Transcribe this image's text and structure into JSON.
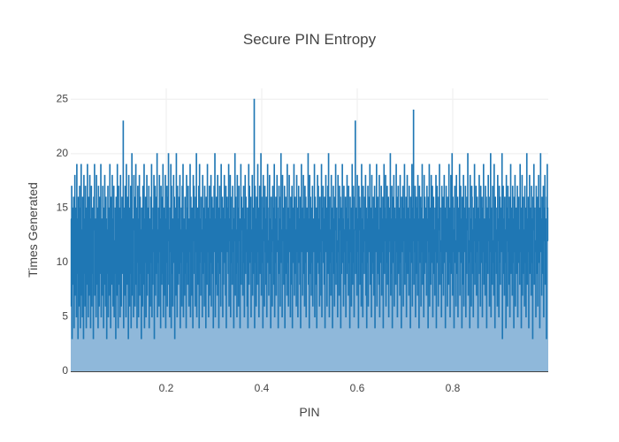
{
  "chart_data": {
    "type": "area",
    "title": "Secure PIN Entropy",
    "xlabel": "PIN",
    "ylabel": "Times Generated",
    "xlim": [
      0,
      1
    ],
    "ylim": [
      0,
      26
    ],
    "x_ticks": [
      0.2,
      0.4,
      0.6,
      0.8
    ],
    "x_tick_labels": [
      "0.2",
      "0.4",
      "0.6",
      "0.8"
    ],
    "y_ticks": [
      0,
      5,
      10,
      15,
      20,
      25
    ],
    "y_tick_labels": [
      "0",
      "5",
      "10",
      "15",
      "20",
      "25"
    ],
    "grid": true,
    "legend": "none",
    "line_color": "#1f77b4",
    "fill_color": "#8fb8da",
    "series": [
      {
        "values": [
          14,
          6,
          17,
          3,
          12,
          15,
          8,
          16,
          4,
          13,
          18,
          7,
          11,
          15,
          5,
          19,
          9,
          14,
          3,
          16,
          12,
          6,
          17,
          10,
          4,
          15,
          19,
          7,
          13,
          5,
          16,
          11,
          3,
          18,
          9,
          14,
          6,
          17,
          12,
          4,
          15,
          8,
          19,
          10,
          5,
          16,
          13,
          7,
          18,
          11,
          4,
          14,
          17,
          6,
          12,
          15,
          9,
          3,
          16,
          13,
          19,
          7,
          10,
          14,
          5,
          18,
          12,
          8,
          15,
          4,
          17,
          11,
          6,
          16,
          13,
          9,
          19,
          5,
          14,
          10,
          7,
          17,
          12,
          4,
          15,
          8,
          18,
          11,
          6,
          16,
          14,
          3,
          13,
          9,
          17,
          5,
          12,
          15,
          7,
          19,
          10,
          4,
          16,
          13,
          8,
          18,
          11,
          6,
          14,
          17,
          5,
          12,
          9,
          15,
          3,
          16,
          13,
          7,
          19,
          10,
          4,
          17,
          12,
          8,
          15,
          5,
          18,
          11,
          6,
          14,
          16,
          9,
          13,
          23,
          4,
          15,
          12,
          7,
          17,
          10,
          5,
          19,
          14,
          8,
          16,
          11,
          3,
          18,
          13,
          6,
          15,
          9,
          17,
          4,
          12,
          20,
          7,
          14,
          10,
          5,
          18,
          13,
          16,
          6,
          11,
          19,
          8,
          15,
          4,
          12,
          17,
          10,
          5,
          14,
          18,
          7,
          16,
          9,
          13,
          3,
          15,
          11,
          6,
          17,
          12,
          8,
          19,
          4,
          14,
          10,
          16,
          5,
          13,
          18,
          7,
          11,
          15,
          9,
          17,
          4,
          14,
          12,
          6,
          16,
          10,
          19,
          5,
          13,
          8,
          15,
          11,
          18,
          3,
          14,
          17,
          7,
          12,
          16,
          9,
          20,
          5,
          13,
          10,
          15,
          6,
          18,
          11,
          14,
          4,
          17,
          12,
          8,
          16,
          9,
          19,
          5,
          13,
          15,
          7,
          11,
          18,
          4,
          14,
          10,
          17,
          6,
          12,
          16,
          20,
          8,
          13,
          5,
          15,
          11,
          19,
          4,
          17,
          9,
          14,
          6,
          12,
          18,
          10,
          16,
          3,
          13,
          15,
          7,
          20,
          11,
          5,
          17,
          14,
          8,
          12,
          16,
          9,
          18,
          4,
          13,
          10,
          15,
          6,
          17,
          11,
          19,
          5,
          14,
          12,
          7,
          16,
          9,
          13,
          4,
          18,
          10,
          15,
          8,
          17,
          12,
          6,
          14,
          11,
          19,
          5,
          16,
          13,
          7,
          15,
          10,
          4,
          18,
          12,
          17,
          9,
          14,
          6,
          16,
          11,
          20,
          5,
          13,
          15,
          8,
          12,
          17,
          4,
          19,
          10,
          14,
          7,
          16,
          11,
          13,
          5,
          18,
          9,
          15,
          12,
          6,
          17,
          10,
          14,
          4,
          16,
          13,
          8,
          19,
          11,
          15,
          5,
          12,
          17,
          7,
          14,
          10,
          18,
          6,
          13,
          16,
          9,
          15,
          4,
          12,
          17,
          11,
          20,
          5,
          14,
          8,
          16,
          13,
          7,
          18,
          10,
          15,
          4,
          12,
          17,
          9,
          14,
          6,
          19,
          11,
          13,
          16,
          5,
          15,
          8,
          12,
          18,
          10,
          14,
          7,
          17,
          4,
          13,
          16,
          11,
          15,
          9,
          19,
          6,
          12,
          14,
          18,
          5,
          16,
          10,
          13,
          8,
          17,
          11,
          15,
          4,
          14,
          12,
          20,
          7,
          16,
          9,
          13,
          5,
          18,
          10,
          15,
          6,
          17,
          12,
          14,
          4,
          11,
          19,
          8,
          16,
          13,
          15,
          7,
          12,
          17,
          10,
          5,
          14,
          18,
          9,
          16,
          11,
          13,
          6,
          15,
          4,
          12,
          19,
          8,
          17,
          10,
          14,
          16,
          5,
          13,
          11,
          18,
          7,
          15,
          9,
          12,
          25,
          4,
          17,
          14,
          10,
          6,
          16,
          13,
          8,
          19,
          11,
          15,
          5,
          12,
          17,
          9,
          14,
          20,
          7,
          16,
          10,
          13,
          4,
          18,
          12,
          15,
          6,
          17,
          11,
          14,
          8,
          16,
          5,
          13,
          19,
          10,
          12,
          7,
          15,
          18,
          9,
          14,
          4,
          16,
          11,
          13,
          6,
          17,
          12,
          15,
          8,
          19,
          5,
          14,
          10,
          16,
          7,
          13,
          18,
          11,
          12,
          4,
          15,
          17,
          9,
          14,
          6,
          16,
          20,
          10,
          13,
          5,
          18,
          12,
          15,
          8,
          11,
          17,
          4,
          14,
          16,
          9,
          13,
          7,
          19,
          10,
          15,
          6,
          12,
          18,
          11,
          14,
          5,
          16,
          13,
          8,
          17,
          4,
          15,
          12,
          10,
          19,
          7,
          14,
          16,
          9,
          13,
          6,
          18,
          11,
          15,
          5,
          12,
          17,
          10,
          14,
          8,
          16,
          4,
          13,
          19,
          11,
          15,
          7,
          12,
          18,
          9,
          14,
          6,
          17,
          10,
          16,
          5,
          13,
          15,
          11,
          12,
          20,
          8,
          14,
          4,
          18,
          9,
          16,
          13,
          7,
          15,
          10,
          17,
          6,
          12,
          14,
          11,
          19,
          5,
          16,
          13,
          8,
          15,
          4,
          12,
          18,
          10,
          17,
          9,
          14,
          6,
          16,
          11,
          13,
          7,
          19,
          5,
          15,
          12,
          17,
          10,
          14,
          8,
          16,
          4,
          13,
          18,
          11,
          15,
          6,
          12,
          17,
          9,
          20,
          14,
          5,
          16,
          10,
          13,
          7,
          18,
          11,
          15,
          4,
          12,
          17,
          9,
          14,
          6,
          16,
          13,
          19,
          8,
          15,
          10,
          12,
          5,
          18,
          11,
          14,
          7,
          17,
          13,
          16,
          4,
          15,
          9,
          12,
          19,
          10,
          14,
          6,
          17,
          11,
          13,
          8,
          16,
          5,
          15,
          12,
          18,
          9,
          14,
          7,
          17,
          10,
          13,
          4,
          16,
          11,
          15,
          6,
          12,
          19,
          8,
          14,
          17,
          10,
          5,
          13,
          16,
          23,
          9,
          15,
          12,
          7,
          18,
          11,
          14,
          4,
          17,
          13,
          16,
          8,
          12,
          15,
          6,
          19,
          10,
          14,
          5,
          17,
          11,
          13,
          9,
          16,
          12,
          18,
          7,
          15,
          4,
          14,
          10,
          17,
          6,
          13,
          16,
          11,
          19,
          8,
          12,
          15,
          5,
          18,
          9,
          14,
          10,
          16,
          7,
          13,
          17,
          4,
          12,
          15,
          11,
          19,
          6,
          14,
          16,
          9,
          13,
          8,
          18,
          5,
          15,
          10,
          12,
          17,
          7,
          14,
          11,
          16,
          4,
          13,
          19,
          9,
          15,
          12,
          18,
          6,
          14,
          10,
          17,
          8,
          13,
          16,
          5,
          11,
          15,
          12,
          20,
          7,
          14,
          9,
          17,
          4,
          16,
          13,
          10,
          18,
          6,
          15,
          12,
          14,
          8,
          19,
          11,
          16,
          5,
          13,
          17,
          9,
          12,
          15,
          7,
          18,
          10,
          14,
          4,
          16,
          13,
          11,
          17,
          6,
          15,
          12,
          19,
          8,
          14,
          10,
          16,
          5,
          13,
          18,
          9,
          12,
          15,
          7,
          17,
          11,
          14,
          4,
          16,
          13,
          10,
          19,
          6,
          15,
          12,
          24,
          8,
          14,
          11,
          17,
          5,
          13,
          16,
          9,
          15,
          7,
          18,
          12,
          14,
          4,
          17,
          10,
          13,
          16,
          6,
          15,
          11,
          19,
          8,
          12,
          14,
          5,
          18,
          9,
          16,
          13,
          10,
          15,
          7,
          17,
          12,
          14,
          4,
          16,
          11,
          19,
          6,
          13,
          15,
          8,
          18,
          10,
          12,
          17,
          5,
          14,
          16,
          9,
          13,
          7,
          15,
          11,
          18,
          4,
          12,
          17,
          10,
          14,
          6,
          16,
          13,
          19,
          8,
          15,
          11,
          12,
          5,
          17,
          9,
          14,
          16,
          7,
          13,
          18,
          10,
          15,
          4,
          12,
          17,
          11,
          14,
          6,
          16,
          13,
          8,
          19,
          10,
          15,
          5,
          12,
          18,
          9,
          14,
          20,
          7,
          16,
          11,
          13,
          4,
          15,
          17,
          10,
          12,
          6,
          18,
          14,
          9,
          16,
          5,
          13,
          15,
          11,
          19,
          7,
          12,
          17,
          10,
          14,
          4,
          16,
          13,
          8,
          18,
          6,
          15,
          12,
          11,
          17,
          5,
          14,
          9,
          16,
          13,
          20,
          7,
          15,
          10,
          12,
          4,
          18,
          11,
          14,
          6,
          17,
          16,
          9,
          13,
          5,
          15,
          12,
          19,
          8,
          14,
          10,
          17,
          7,
          13,
          16,
          11,
          4,
          15,
          12,
          18,
          9,
          14,
          6,
          17,
          10,
          13,
          16,
          5,
          15,
          11,
          19,
          8,
          12,
          14,
          7,
          17,
          10,
          16,
          4,
          13,
          15,
          9,
          18,
          12,
          14,
          6,
          16,
          11,
          20,
          5,
          13,
          15,
          8,
          17,
          10,
          12,
          7,
          19,
          14,
          4,
          16,
          11,
          13,
          9,
          15,
          6,
          18,
          12,
          14,
          5,
          17,
          10,
          16,
          8,
          13,
          15,
          11,
          20,
          3,
          12,
          17,
          9,
          14,
          7,
          16,
          10,
          13,
          4,
          18,
          12,
          15,
          6,
          17,
          11,
          14,
          8,
          16,
          5,
          13,
          19,
          9,
          15,
          12,
          7,
          17,
          10,
          14,
          4,
          16,
          11,
          18,
          6,
          13,
          15,
          9,
          12,
          17,
          5,
          14,
          16,
          10,
          13,
          8,
          19,
          11,
          15,
          4,
          12,
          18,
          7,
          14,
          16,
          9,
          13,
          6,
          17,
          10,
          15,
          5,
          12,
          20,
          8,
          14,
          11,
          16,
          4,
          13,
          18,
          9,
          15,
          12,
          7,
          17,
          10,
          14,
          3,
          16,
          13,
          19,
          8,
          15,
          11,
          12,
          5,
          17,
          9,
          14,
          16,
          6,
          13,
          18,
          10,
          15,
          4,
          12,
          20,
          11,
          14,
          7,
          16,
          13,
          9,
          17,
          5,
          15,
          12,
          18,
          8,
          14,
          10,
          3,
          16,
          19,
          15,
          12
        ]
      }
    ]
  }
}
